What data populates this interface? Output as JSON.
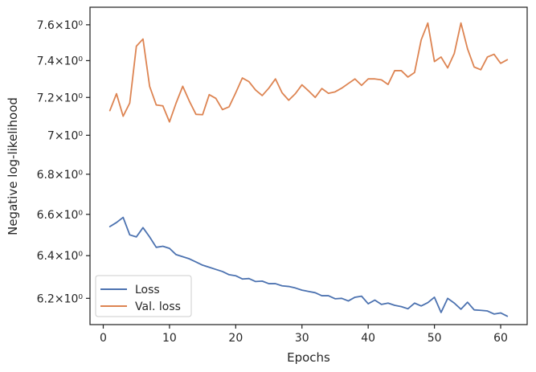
{
  "chart_data": {
    "type": "line",
    "xlabel": "Epochs",
    "ylabel": "Negative log-likelihood",
    "xlim": [
      -2,
      64
    ],
    "ylim": [
      6.08,
      7.7
    ],
    "y_scale": "log",
    "grid": false,
    "legend_position": "lower-left",
    "x_ticks": [
      0,
      10,
      20,
      30,
      40,
      50,
      60
    ],
    "x_tick_labels": [
      "0",
      "10",
      "20",
      "30",
      "40",
      "50",
      "60"
    ],
    "y_ticks": [
      6.2,
      6.4,
      6.6,
      6.8,
      7.0,
      7.2,
      7.4,
      7.6
    ],
    "y_tick_labels": [
      "6.2×10⁰",
      "6.4×10⁰",
      "6.6×10⁰",
      "6.8×10⁰",
      "7×10⁰",
      "7.2×10⁰",
      "7.4×10⁰",
      "7.6×10⁰"
    ],
    "x": [
      1,
      2,
      3,
      4,
      5,
      6,
      7,
      8,
      9,
      10,
      11,
      12,
      13,
      14,
      15,
      16,
      17,
      18,
      19,
      20,
      21,
      22,
      23,
      24,
      25,
      26,
      27,
      28,
      29,
      30,
      31,
      32,
      33,
      34,
      35,
      36,
      37,
      38,
      39,
      40,
      41,
      42,
      43,
      44,
      45,
      46,
      47,
      48,
      49,
      50,
      51,
      52,
      53,
      54,
      55,
      56,
      57,
      58,
      59,
      60,
      61
    ],
    "series": [
      {
        "name": "Loss",
        "color": "#4c72b0",
        "values": [
          6.54,
          6.56,
          6.585,
          6.5,
          6.49,
          6.535,
          6.49,
          6.44,
          6.445,
          6.435,
          6.405,
          6.395,
          6.385,
          6.37,
          6.355,
          6.345,
          6.335,
          6.325,
          6.31,
          6.305,
          6.29,
          6.292,
          6.278,
          6.28,
          6.268,
          6.268,
          6.258,
          6.255,
          6.248,
          6.238,
          6.232,
          6.226,
          6.212,
          6.212,
          6.198,
          6.2,
          6.188,
          6.205,
          6.21,
          6.175,
          6.192,
          6.172,
          6.178,
          6.168,
          6.162,
          6.152,
          6.178,
          6.165,
          6.18,
          6.205,
          6.135,
          6.2,
          6.178,
          6.15,
          6.182,
          6.147,
          6.145,
          6.142,
          6.128,
          6.133,
          6.118
        ]
      },
      {
        "name": "Val. loss",
        "color": "#dd8452",
        "values": [
          7.13,
          7.22,
          7.1,
          7.17,
          7.48,
          7.52,
          7.26,
          7.16,
          7.155,
          7.07,
          7.17,
          7.26,
          7.18,
          7.11,
          7.108,
          7.215,
          7.195,
          7.135,
          7.15,
          7.225,
          7.305,
          7.285,
          7.24,
          7.21,
          7.25,
          7.3,
          7.225,
          7.185,
          7.22,
          7.268,
          7.235,
          7.2,
          7.248,
          7.222,
          7.23,
          7.25,
          7.275,
          7.3,
          7.265,
          7.3,
          7.3,
          7.295,
          7.27,
          7.345,
          7.345,
          7.31,
          7.335,
          7.515,
          7.61,
          7.395,
          7.42,
          7.36,
          7.44,
          7.61,
          7.465,
          7.365,
          7.35,
          7.42,
          7.435,
          7.385,
          7.405
        ]
      }
    ]
  }
}
